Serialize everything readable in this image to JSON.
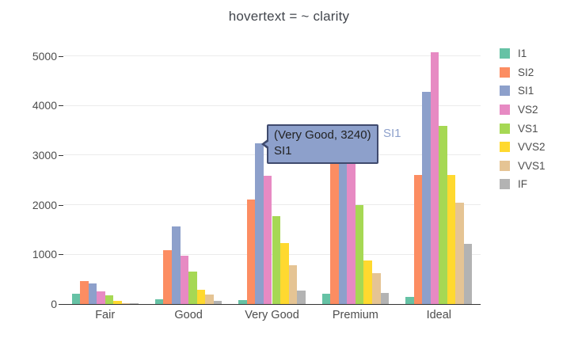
{
  "title": "hovertext = ~ clarity",
  "tooltip": {
    "line1": "(Very Good, 3240)",
    "line2": "SI1",
    "side_label": "SI1",
    "bg_color": "#8da0cb",
    "border_color": "#3f4a6d",
    "text_color": "#222222",
    "side_label_color": "#8da0cb"
  },
  "colors": {
    "background": "#ffffff",
    "gridline": "#ebebeb",
    "axis_line": "#333333",
    "tick_label": "#4d4d4d"
  },
  "chart_data": {
    "type": "bar",
    "bar_mode": "group",
    "title": "hovertext = ~ clarity",
    "xlabel": "",
    "ylabel": "",
    "grid": true,
    "legend_position": "right",
    "ylim": [
      0,
      5200
    ],
    "y_ticks": [
      0,
      1000,
      2000,
      3000,
      4000,
      5000
    ],
    "categories": [
      "Fair",
      "Good",
      "Very Good",
      "Premium",
      "Ideal"
    ],
    "series": [
      {
        "name": "I1",
        "color": "#66c2a5",
        "values": [
          210,
          96,
          84,
          205,
          146
        ]
      },
      {
        "name": "SI2",
        "color": "#fc8d62",
        "values": [
          466,
          1081,
          2100,
          2949,
          2598
        ]
      },
      {
        "name": "SI1",
        "color": "#8da0cb",
        "values": [
          408,
          1560,
          3240,
          3575,
          4282
        ]
      },
      {
        "name": "VS2",
        "color": "#e78ac3",
        "values": [
          261,
          978,
          2591,
          3357,
          5071
        ]
      },
      {
        "name": "VS1",
        "color": "#a6d854",
        "values": [
          170,
          648,
          1775,
          1989,
          3589
        ]
      },
      {
        "name": "VVS2",
        "color": "#ffd92f",
        "values": [
          69,
          286,
          1235,
          870,
          2606
        ]
      },
      {
        "name": "VVS1",
        "color": "#e5c494",
        "values": [
          17,
          186,
          789,
          616,
          2047
        ]
      },
      {
        "name": "IF",
        "color": "#b3b3b3",
        "values": [
          9,
          71,
          268,
          230,
          1212
        ]
      }
    ]
  }
}
